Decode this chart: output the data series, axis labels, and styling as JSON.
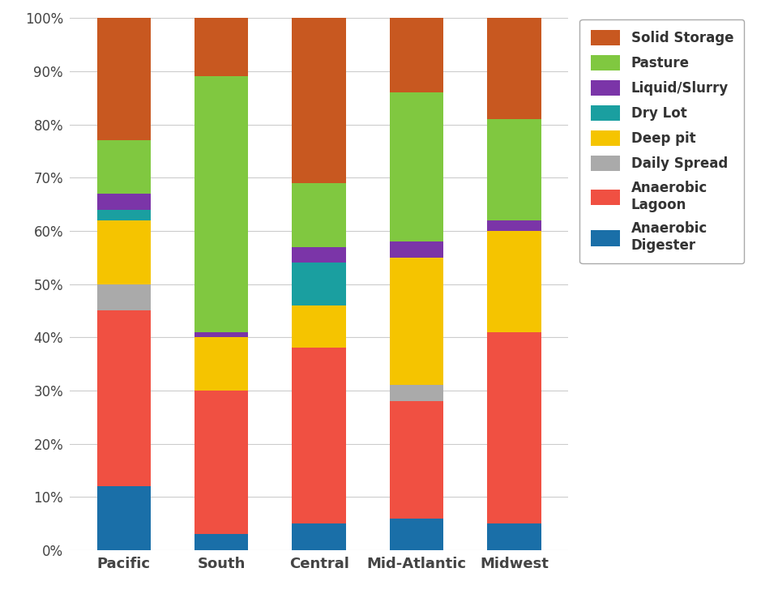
{
  "categories": [
    "Pacific",
    "South",
    "Central",
    "Mid-Atlantic",
    "Midwest"
  ],
  "series": [
    {
      "label": "Anaerobic Digester",
      "color": "#1a6fa8",
      "values": [
        12,
        3,
        5,
        6,
        5
      ]
    },
    {
      "label": "Anaerobic Lagoon",
      "color": "#f05042",
      "values": [
        33,
        27,
        33,
        22,
        36
      ]
    },
    {
      "label": "Daily Spread",
      "color": "#aaaaaa",
      "values": [
        5,
        0,
        0,
        3,
        0
      ]
    },
    {
      "label": "Deep pit",
      "color": "#f5c400",
      "values": [
        12,
        10,
        8,
        24,
        19
      ]
    },
    {
      "label": "Dry Lot",
      "color": "#1a9fa0",
      "values": [
        2,
        0,
        8,
        0,
        0
      ]
    },
    {
      "label": "Liquid/Slurry",
      "color": "#7b35a8",
      "values": [
        3,
        1,
        3,
        3,
        2
      ]
    },
    {
      "label": "Pasture",
      "color": "#80c840",
      "values": [
        10,
        48,
        12,
        28,
        19
      ]
    },
    {
      "label": "Solid Storage",
      "color": "#c85820",
      "values": [
        23,
        11,
        31,
        14,
        19
      ]
    }
  ],
  "legend_labels": [
    "Solid Storage",
    "Pasture",
    "Liquid/Slurry",
    "Dry Lot",
    "Deep pit",
    "Daily Spread",
    "Anaerobic\nLagoon",
    "Anaerobic\nDigester"
  ],
  "legend_colors": [
    "#c85820",
    "#80c840",
    "#7b35a8",
    "#1a9fa0",
    "#f5c400",
    "#aaaaaa",
    "#f05042",
    "#1a6fa8"
  ],
  "ylim": [
    0,
    100
  ],
  "ytick_labels": [
    "0%",
    "10%",
    "20%",
    "30%",
    "40%",
    "50%",
    "60%",
    "70%",
    "80%",
    "90%",
    "100%"
  ],
  "background_color": "#ffffff",
  "grid_color": "#cccccc",
  "bar_width": 0.55,
  "figsize": [
    9.6,
    7.38
  ],
  "dpi": 100
}
